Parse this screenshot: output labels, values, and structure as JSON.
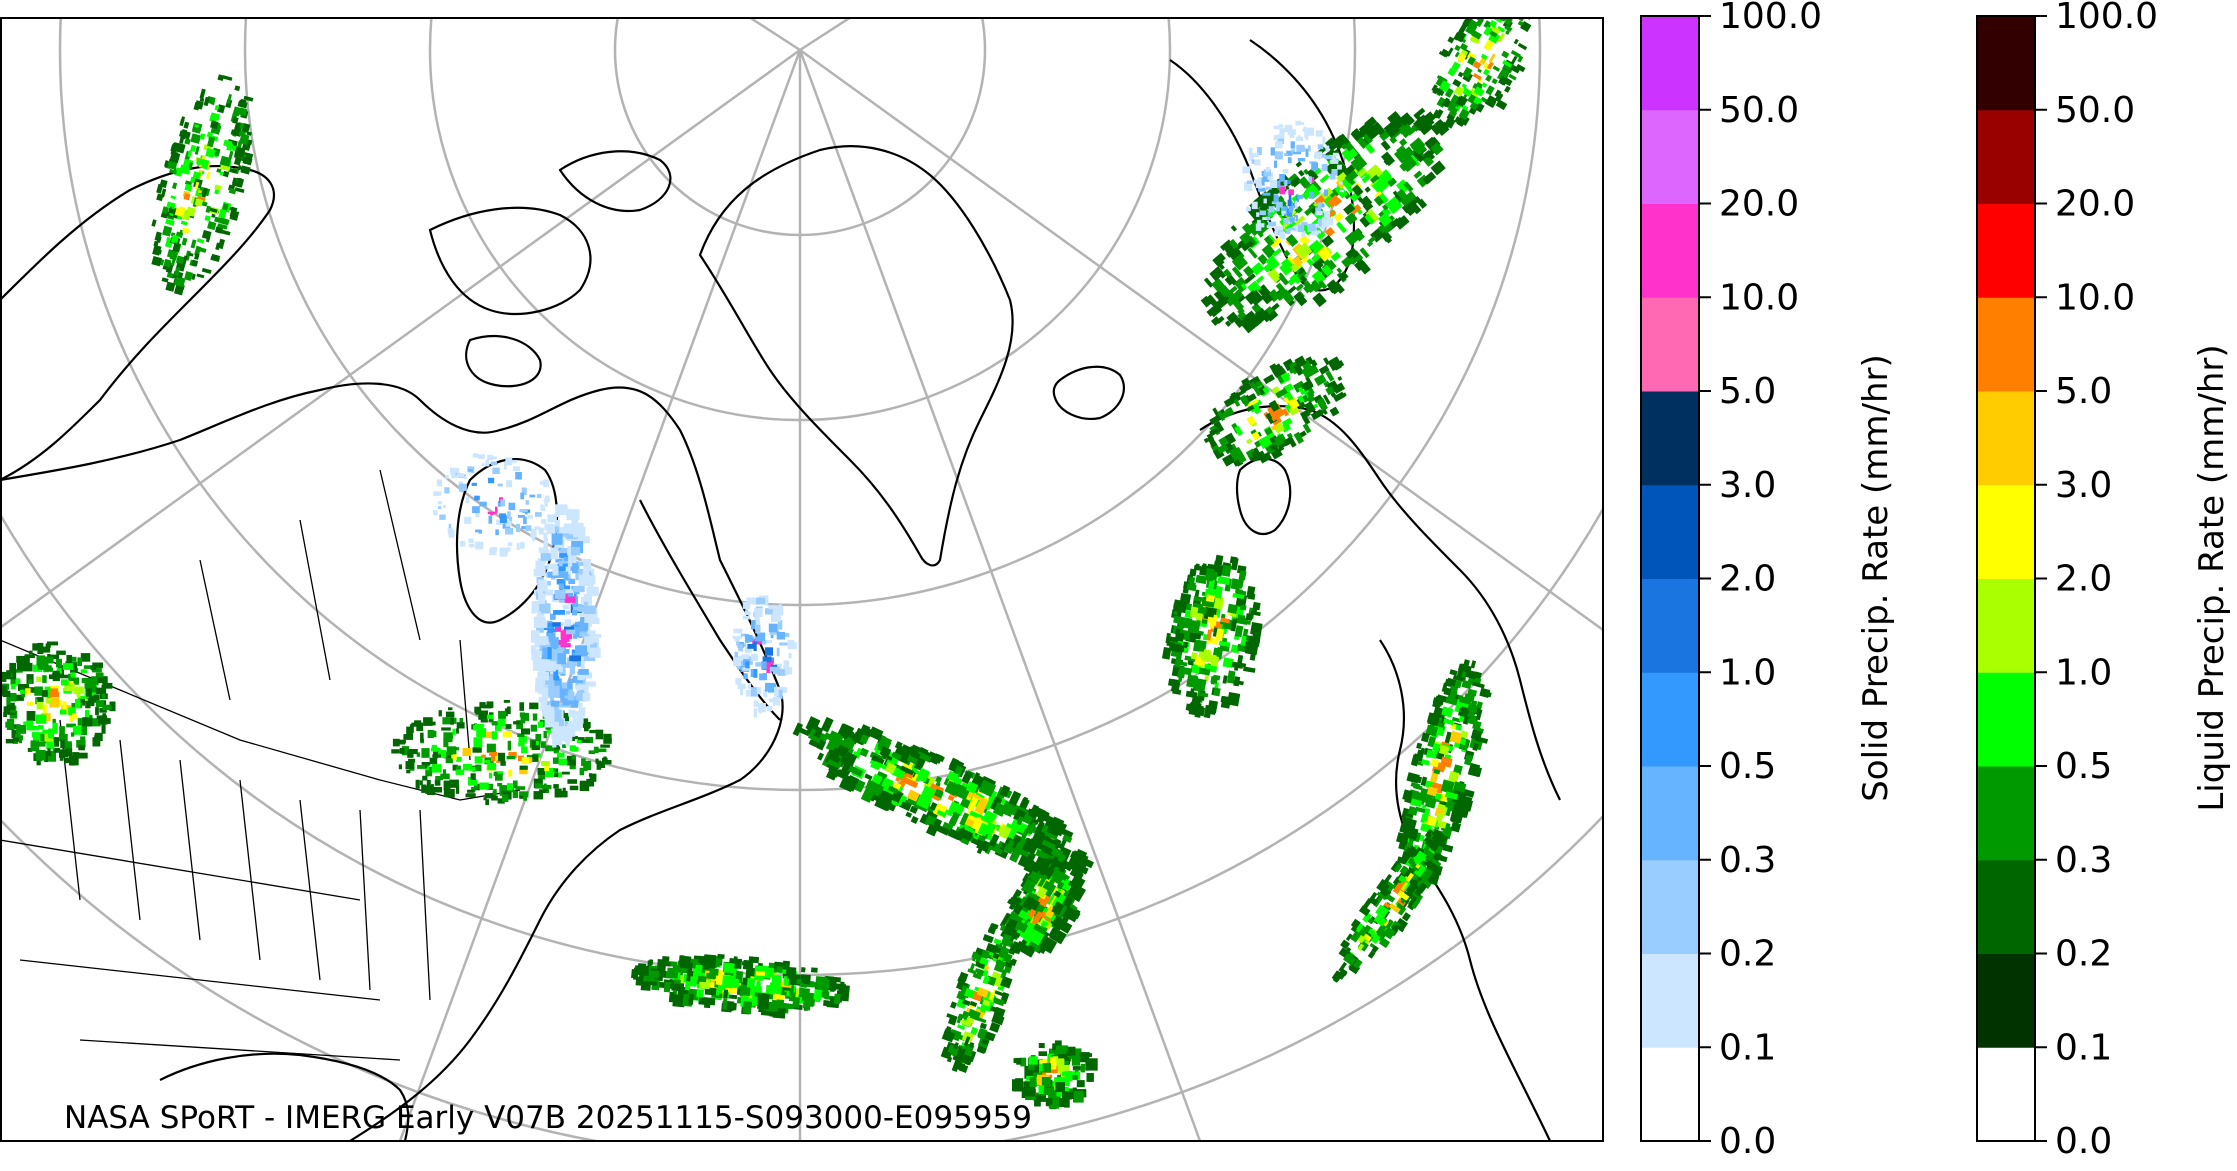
{
  "credit": "NASA SPoRT - IMERG Early V07B 20251115-S093000-E095959",
  "solid_colorbar": {
    "label": "Solid Precip. Rate (mm/hr)",
    "ticks": [
      "0.0",
      "0.1",
      "0.2",
      "0.3",
      "0.5",
      "1.0",
      "2.0",
      "3.0",
      "5.0",
      "10.0",
      "20.0",
      "50.0",
      "100.0"
    ],
    "colors": [
      "#ffffff",
      "#cce6ff",
      "#99ccff",
      "#66b3ff",
      "#3399ff",
      "#1a75e0",
      "#0055bb",
      "#00305f",
      "#ff69b4",
      "#ff33cc",
      "#dd66ff",
      "#cc33ff",
      "#9900cc"
    ]
  },
  "liquid_colorbar": {
    "label": "Liquid Precip. Rate (mm/hr)",
    "ticks": [
      "0.0",
      "0.1",
      "0.2",
      "0.3",
      "0.5",
      "1.0",
      "2.0",
      "3.0",
      "5.0",
      "10.0",
      "20.0",
      "50.0",
      "100.0"
    ],
    "colors": [
      "#ffffff",
      "#003300",
      "#006600",
      "#009900",
      "#00ff00",
      "#aaff00",
      "#ffff00",
      "#ffcc00",
      "#ff8000",
      "#ff0000",
      "#990000",
      "#330000"
    ]
  },
  "colors": {
    "coastline": "#000000",
    "graticule": "#b3b3b3",
    "frame": "#000000"
  }
}
